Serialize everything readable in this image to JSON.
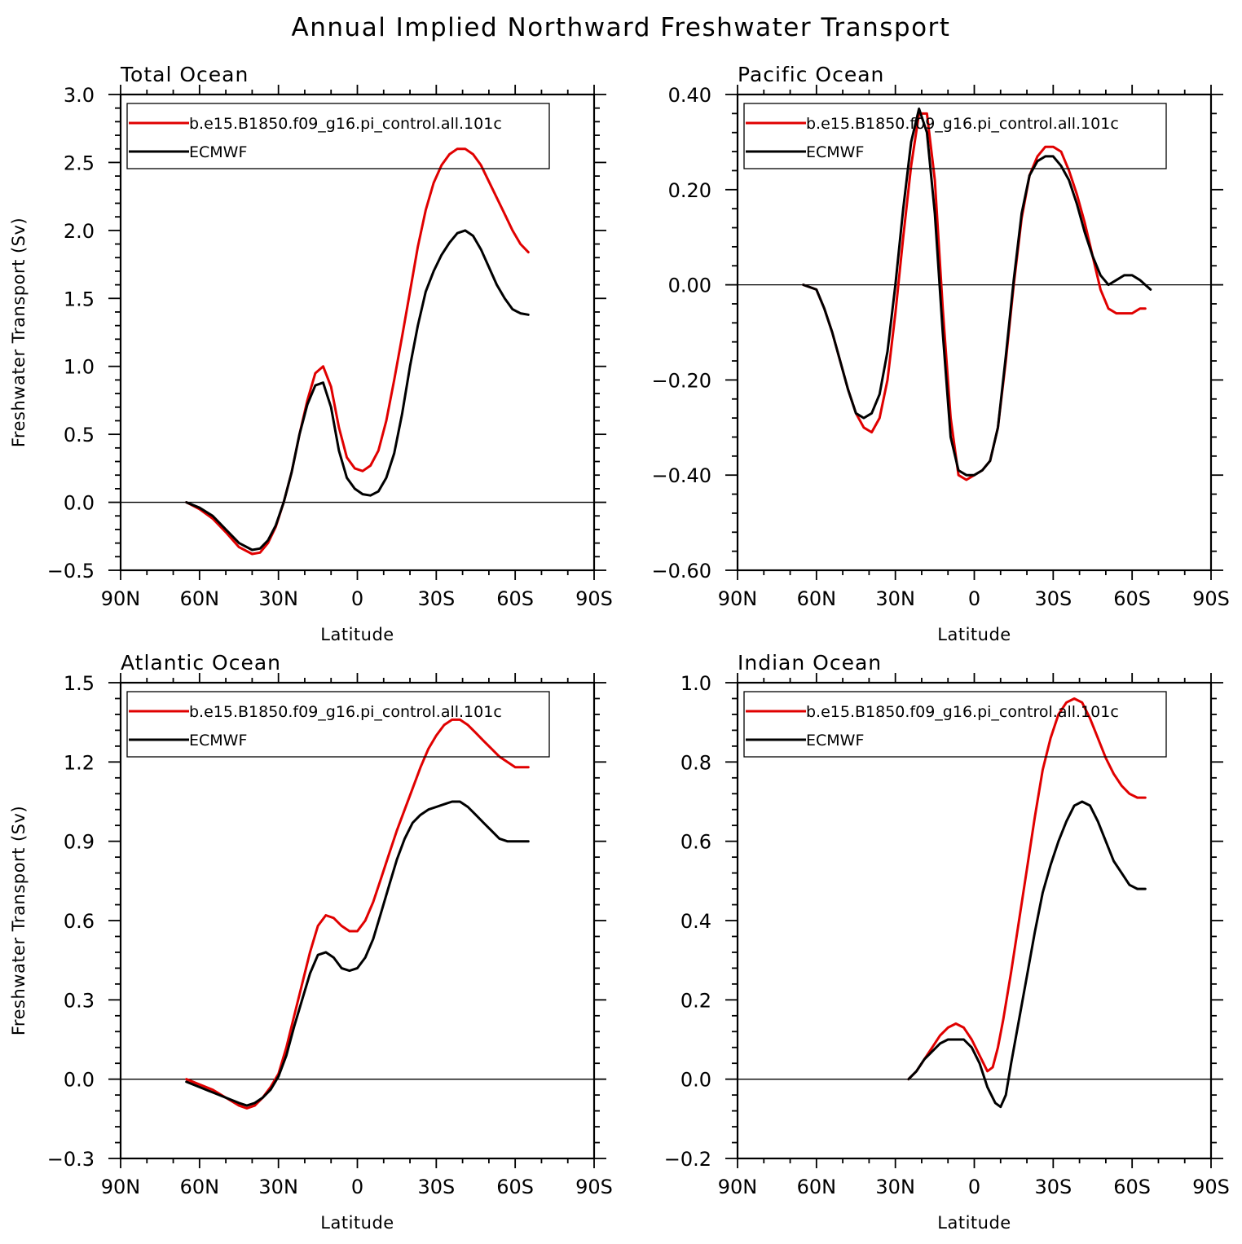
{
  "title": "Annual Implied Northward Freshwater Transport",
  "colors": {
    "model": "#e00000",
    "obs": "#000000"
  },
  "chart_data": [
    {
      "type": "line",
      "title": "Total Ocean",
      "xlabel": "Latitude",
      "ylabel": "Freshwater Transport (Sv)",
      "xlim": [
        90,
        -90
      ],
      "xticks": [
        90,
        60,
        30,
        0,
        -30,
        -60,
        -90
      ],
      "xtick_labels": [
        "90N",
        "60N",
        "30N",
        "0",
        "30S",
        "60S",
        "90S"
      ],
      "ylim": [
        -0.5,
        3.0
      ],
      "yticks": [
        -0.5,
        0.0,
        0.5,
        1.0,
        1.5,
        2.0,
        2.5,
        3.0
      ],
      "ytick_labels": [
        "−0.5",
        "0.0",
        "0.5",
        "1.0",
        "1.5",
        "2.0",
        "2.5",
        "3.0"
      ],
      "zero_line": true,
      "legend_position": "top-left",
      "series": [
        {
          "name": "b.e15.B1850.f09_g16.pi_control.all.101c",
          "color": "#e00000",
          "x": [
            65,
            60,
            55,
            50,
            45,
            40,
            37,
            34,
            31,
            28,
            25,
            22,
            19,
            16,
            13,
            10,
            7,
            4,
            1,
            -2,
            -5,
            -8,
            -11,
            -14,
            -17,
            -20,
            -23,
            -26,
            -29,
            -32,
            -35,
            -38,
            -41,
            -44,
            -47,
            -50,
            -53,
            -56,
            -59,
            -62,
            -65
          ],
          "y": [
            0.0,
            -0.05,
            -0.12,
            -0.22,
            -0.33,
            -0.38,
            -0.37,
            -0.3,
            -0.18,
            0.0,
            0.22,
            0.5,
            0.75,
            0.95,
            1.0,
            0.85,
            0.55,
            0.33,
            0.25,
            0.23,
            0.27,
            0.38,
            0.6,
            0.9,
            1.22,
            1.55,
            1.88,
            2.15,
            2.35,
            2.48,
            2.56,
            2.6,
            2.6,
            2.56,
            2.48,
            2.36,
            2.24,
            2.12,
            2.0,
            1.9,
            1.84
          ]
        },
        {
          "name": "ECMWF",
          "color": "#000000",
          "x": [
            65,
            60,
            55,
            50,
            45,
            40,
            37,
            34,
            31,
            28,
            25,
            22,
            19,
            16,
            13,
            10,
            7,
            4,
            1,
            -2,
            -5,
            -8,
            -11,
            -14,
            -17,
            -20,
            -23,
            -26,
            -29,
            -32,
            -35,
            -38,
            -41,
            -44,
            -47,
            -50,
            -53,
            -56,
            -59,
            -62,
            -65
          ],
          "y": [
            0.0,
            -0.04,
            -0.1,
            -0.2,
            -0.3,
            -0.35,
            -0.34,
            -0.28,
            -0.17,
            0.0,
            0.22,
            0.5,
            0.72,
            0.86,
            0.88,
            0.7,
            0.38,
            0.18,
            0.1,
            0.06,
            0.05,
            0.08,
            0.18,
            0.36,
            0.65,
            1.0,
            1.3,
            1.55,
            1.7,
            1.82,
            1.91,
            1.98,
            2.0,
            1.96,
            1.86,
            1.73,
            1.6,
            1.5,
            1.42,
            1.39,
            1.38
          ]
        }
      ]
    },
    {
      "type": "line",
      "title": "Pacific Ocean",
      "xlabel": "Latitude",
      "ylabel": "",
      "xlim": [
        90,
        -90
      ],
      "xticks": [
        90,
        60,
        30,
        0,
        -30,
        -60,
        -90
      ],
      "xtick_labels": [
        "90N",
        "60N",
        "30N",
        "0",
        "30S",
        "60S",
        "90S"
      ],
      "ylim": [
        -0.6,
        0.4
      ],
      "yticks": [
        -0.6,
        -0.4,
        -0.2,
        0.0,
        0.2,
        0.4
      ],
      "ytick_labels": [
        "−0.60",
        "−0.40",
        "−0.20",
        "0.00",
        "0.20",
        "0.40"
      ],
      "zero_line": true,
      "legend_position": "top-left",
      "series": [
        {
          "name": "b.e15.B1850.f09_g16.pi_control.all.101c",
          "color": "#e00000",
          "x": [
            65,
            60,
            57,
            54,
            51,
            48,
            45,
            42,
            39,
            36,
            33,
            30,
            27,
            24,
            21,
            18,
            15,
            12,
            9,
            6,
            3,
            0,
            -3,
            -6,
            -9,
            -12,
            -15,
            -18,
            -21,
            -24,
            -27,
            -30,
            -33,
            -36,
            -39,
            -42,
            -45,
            -48,
            -51,
            -54,
            -57,
            -60,
            -63,
            -65
          ],
          "y": [
            0.0,
            -0.01,
            -0.05,
            -0.1,
            -0.16,
            -0.22,
            -0.27,
            -0.3,
            -0.31,
            -0.28,
            -0.2,
            -0.06,
            0.1,
            0.25,
            0.36,
            0.36,
            0.22,
            -0.05,
            -0.28,
            -0.4,
            -0.41,
            -0.4,
            -0.39,
            -0.37,
            -0.3,
            -0.16,
            0.0,
            0.14,
            0.23,
            0.27,
            0.29,
            0.29,
            0.28,
            0.24,
            0.19,
            0.13,
            0.06,
            -0.01,
            -0.05,
            -0.06,
            -0.06,
            -0.06,
            -0.05,
            -0.05
          ]
        },
        {
          "name": "ECMWF",
          "color": "#000000",
          "x": [
            65,
            60,
            57,
            54,
            51,
            48,
            45,
            42,
            39,
            36,
            33,
            30,
            27,
            24,
            21,
            18,
            15,
            12,
            9,
            6,
            3,
            0,
            -3,
            -6,
            -9,
            -12,
            -15,
            -18,
            -21,
            -24,
            -27,
            -30,
            -33,
            -36,
            -39,
            -42,
            -45,
            -48,
            -51,
            -54,
            -57,
            -60,
            -63,
            -65,
            -67
          ],
          "y": [
            0.0,
            -0.01,
            -0.05,
            -0.1,
            -0.16,
            -0.22,
            -0.27,
            -0.28,
            -0.27,
            -0.23,
            -0.14,
            0.0,
            0.16,
            0.3,
            0.37,
            0.32,
            0.15,
            -0.1,
            -0.32,
            -0.39,
            -0.4,
            -0.4,
            -0.39,
            -0.37,
            -0.3,
            -0.15,
            0.01,
            0.15,
            0.23,
            0.26,
            0.27,
            0.27,
            0.25,
            0.22,
            0.17,
            0.11,
            0.06,
            0.02,
            0.0,
            0.01,
            0.02,
            0.02,
            0.01,
            0.0,
            -0.01
          ]
        }
      ]
    },
    {
      "type": "line",
      "title": "Atlantic Ocean",
      "xlabel": "Latitude",
      "ylabel": "Freshwater Transport (Sv)",
      "xlim": [
        90,
        -90
      ],
      "xticks": [
        90,
        60,
        30,
        0,
        -30,
        -60,
        -90
      ],
      "xtick_labels": [
        "90N",
        "60N",
        "30N",
        "0",
        "30S",
        "60S",
        "90S"
      ],
      "ylim": [
        -0.3,
        1.5
      ],
      "yticks": [
        -0.3,
        0.0,
        0.3,
        0.6,
        0.9,
        1.2,
        1.5
      ],
      "ytick_labels": [
        "−0.3",
        "0.0",
        "0.3",
        "0.6",
        "0.9",
        "1.2",
        "1.5"
      ],
      "zero_line": true,
      "legend_position": "top-left",
      "series": [
        {
          "name": "b.e15.B1850.f09_g16.pi_control.all.101c",
          "color": "#e00000",
          "x": [
            65,
            60,
            55,
            50,
            45,
            42,
            39,
            36,
            33,
            30,
            27,
            24,
            21,
            18,
            15,
            12,
            9,
            6,
            3,
            0,
            -3,
            -6,
            -9,
            -12,
            -15,
            -18,
            -21,
            -24,
            -27,
            -30,
            -33,
            -36,
            -39,
            -42,
            -45,
            -48,
            -51,
            -54,
            -57,
            -60,
            -63,
            -65
          ],
          "y": [
            0.0,
            -0.02,
            -0.04,
            -0.07,
            -0.1,
            -0.11,
            -0.1,
            -0.07,
            -0.03,
            0.02,
            0.12,
            0.24,
            0.36,
            0.48,
            0.58,
            0.62,
            0.61,
            0.58,
            0.56,
            0.56,
            0.6,
            0.67,
            0.76,
            0.85,
            0.94,
            1.02,
            1.1,
            1.18,
            1.25,
            1.3,
            1.34,
            1.36,
            1.36,
            1.34,
            1.31,
            1.28,
            1.25,
            1.22,
            1.2,
            1.18,
            1.18,
            1.18
          ]
        },
        {
          "name": "ECMWF",
          "color": "#000000",
          "x": [
            65,
            60,
            55,
            50,
            45,
            42,
            39,
            36,
            33,
            30,
            27,
            24,
            21,
            18,
            15,
            12,
            9,
            6,
            3,
            0,
            -3,
            -6,
            -9,
            -12,
            -15,
            -18,
            -21,
            -24,
            -27,
            -30,
            -33,
            -36,
            -39,
            -42,
            -45,
            -48,
            -51,
            -54,
            -57,
            -60,
            -63,
            -65
          ],
          "y": [
            -0.01,
            -0.03,
            -0.05,
            -0.07,
            -0.09,
            -0.1,
            -0.09,
            -0.07,
            -0.04,
            0.01,
            0.09,
            0.2,
            0.3,
            0.4,
            0.47,
            0.48,
            0.46,
            0.42,
            0.41,
            0.42,
            0.46,
            0.53,
            0.63,
            0.73,
            0.83,
            0.91,
            0.97,
            1.0,
            1.02,
            1.03,
            1.04,
            1.05,
            1.05,
            1.03,
            1.0,
            0.97,
            0.94,
            0.91,
            0.9,
            0.9,
            0.9,
            0.9
          ]
        }
      ]
    },
    {
      "type": "line",
      "title": "Indian Ocean",
      "xlabel": "Latitude",
      "ylabel": "",
      "xlim": [
        90,
        -90
      ],
      "xticks": [
        90,
        60,
        30,
        0,
        -30,
        -60,
        -90
      ],
      "xtick_labels": [
        "90N",
        "60N",
        "30N",
        "0",
        "30S",
        "60S",
        "90S"
      ],
      "ylim": [
        -0.2,
        1.0
      ],
      "yticks": [
        -0.2,
        0.0,
        0.2,
        0.4,
        0.6,
        0.8,
        1.0
      ],
      "ytick_labels": [
        "−0.2",
        "0.0",
        "0.2",
        "0.4",
        "0.6",
        "0.8",
        "1.0"
      ],
      "zero_line": true,
      "legend_position": "top-left",
      "series": [
        {
          "name": "b.e15.B1850.f09_g16.pi_control.all.101c",
          "color": "#e00000",
          "x": [
            25,
            22,
            19,
            16,
            13,
            10,
            7,
            4,
            1,
            -2,
            -5,
            -7,
            -9,
            -11,
            -14,
            -17,
            -20,
            -23,
            -26,
            -29,
            -32,
            -35,
            -38,
            -41,
            -44,
            -47,
            -50,
            -53,
            -56,
            -59,
            -62,
            -65
          ],
          "y": [
            0.0,
            0.02,
            0.05,
            0.08,
            0.11,
            0.13,
            0.14,
            0.13,
            0.1,
            0.06,
            0.02,
            0.03,
            0.08,
            0.15,
            0.27,
            0.4,
            0.53,
            0.66,
            0.78,
            0.86,
            0.92,
            0.95,
            0.96,
            0.95,
            0.91,
            0.86,
            0.81,
            0.77,
            0.74,
            0.72,
            0.71,
            0.71
          ]
        },
        {
          "name": "ECMWF",
          "color": "#000000",
          "x": [
            25,
            22,
            19,
            16,
            13,
            10,
            7,
            4,
            1,
            -2,
            -5,
            -8,
            -10,
            -12,
            -14,
            -17,
            -20,
            -23,
            -26,
            -29,
            -32,
            -35,
            -38,
            -41,
            -44,
            -47,
            -50,
            -53,
            -56,
            -59,
            -62,
            -65
          ],
          "y": [
            0.0,
            0.02,
            0.05,
            0.07,
            0.09,
            0.1,
            0.1,
            0.1,
            0.08,
            0.04,
            -0.02,
            -0.06,
            -0.07,
            -0.04,
            0.04,
            0.15,
            0.26,
            0.37,
            0.47,
            0.54,
            0.6,
            0.65,
            0.69,
            0.7,
            0.69,
            0.65,
            0.6,
            0.55,
            0.52,
            0.49,
            0.48,
            0.48
          ]
        }
      ]
    }
  ]
}
